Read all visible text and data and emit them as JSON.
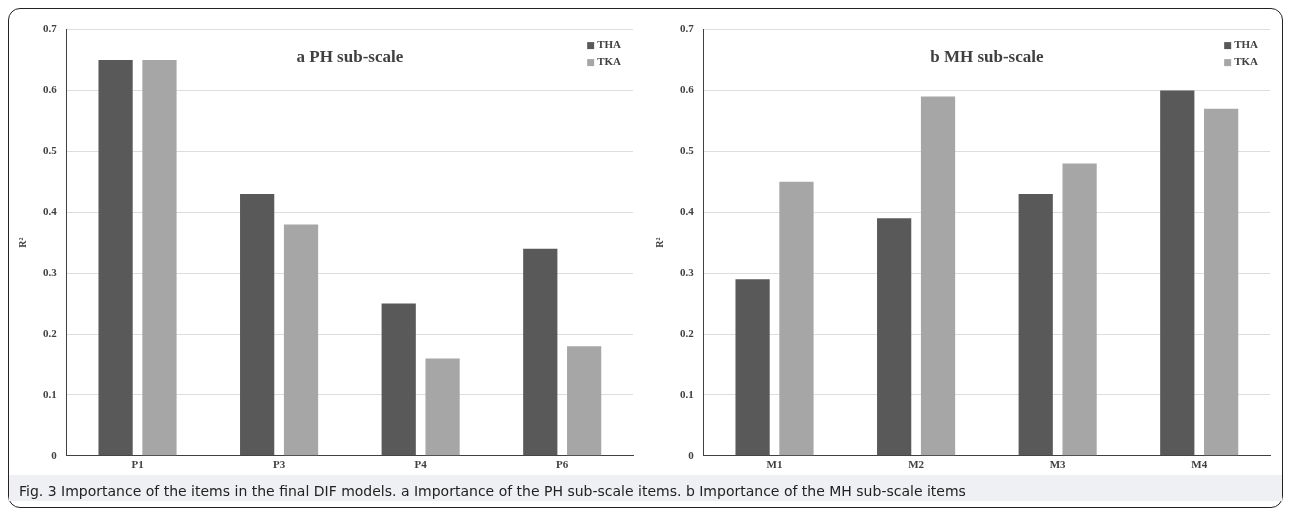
{
  "chart_data": [
    {
      "type": "bar",
      "title": "a PH sub-scale",
      "ylabel": "R²",
      "categories": [
        "P1",
        "P3",
        "P4",
        "P6"
      ],
      "series": [
        {
          "name": "THA",
          "color": "#595959",
          "values": [
            0.65,
            0.43,
            0.25,
            0.34
          ]
        },
        {
          "name": "TKA",
          "color": "#a6a6a6",
          "values": [
            0.65,
            0.38,
            0.16,
            0.18
          ]
        }
      ],
      "ylim": [
        0,
        0.7
      ],
      "yticks": [
        0,
        0.1,
        0.2,
        0.3,
        0.4,
        0.5,
        0.6,
        0.7
      ],
      "grid": "y",
      "legend": "top right",
      "annotations": [
        "Fig. 3 Importance of the items in the final DIF models. a Importance of the PH sub-scale items. b Importance of the MH sub-scale items"
      ]
    },
    {
      "type": "bar",
      "title": "b MH sub-scale",
      "ylabel": "R²",
      "categories": [
        "M1",
        "M2",
        "M3",
        "M4"
      ],
      "series": [
        {
          "name": "THA",
          "color": "#595959",
          "values": [
            0.29,
            0.39,
            0.43,
            0.6
          ]
        },
        {
          "name": "TKA",
          "color": "#a6a6a6",
          "values": [
            0.45,
            0.59,
            0.48,
            0.57
          ]
        }
      ],
      "ylim": [
        0,
        0.7
      ],
      "yticks": [
        0,
        0.1,
        0.2,
        0.3,
        0.4,
        0.5,
        0.6,
        0.7
      ],
      "grid": "y",
      "legend": "top right"
    }
  ]
}
